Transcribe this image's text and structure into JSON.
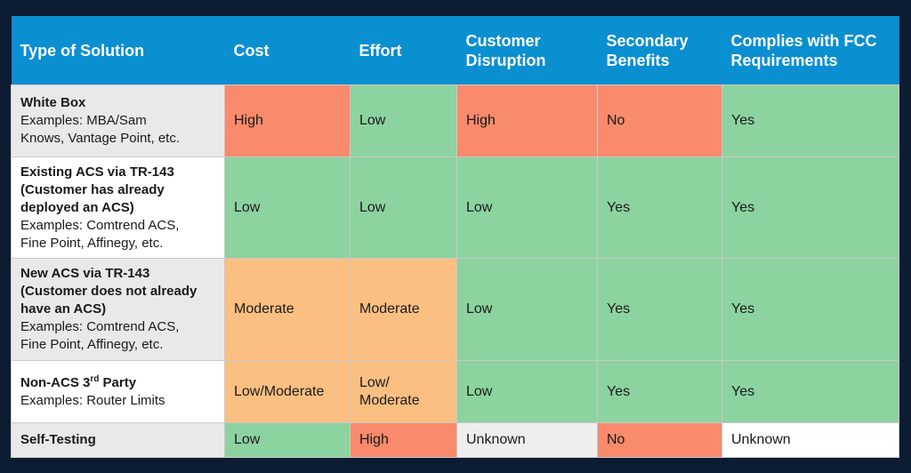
{
  "headers": [
    "Type of Solution",
    "Cost",
    "Effort",
    "Customer Disruption",
    "Secondary Benefits",
    "Complies with FCC Requirements"
  ],
  "header_lines": [
    [
      "Type of Solution"
    ],
    [
      "Cost"
    ],
    [
      "Effort"
    ],
    [
      "Customer",
      "Disruption"
    ],
    [
      "Secondary",
      "Benefits"
    ],
    [
      "Complies with FCC",
      "Requirements"
    ]
  ],
  "rows": [
    {
      "type": {
        "bold": [
          "White Box"
        ],
        "examples": [
          "Examples: MBA/Sam",
          "Knows, Vantage Point, etc."
        ]
      },
      "cells": [
        "High",
        "Low",
        "High",
        "No",
        "Yes"
      ]
    },
    {
      "type": {
        "bold": [
          "Existing ACS via TR-143",
          "(Customer has already",
          "deployed an ACS)"
        ],
        "examples": [
          "Examples: Comtrend ACS,",
          "Fine Point, Affinegy, etc."
        ]
      },
      "cells": [
        "Low",
        "Low",
        "Low",
        "Yes",
        "Yes"
      ]
    },
    {
      "type": {
        "bold": [
          "New ACS via TR-143",
          "(Customer does not already",
          "have an ACS)"
        ],
        "examples": [
          "Examples: Comtrend ACS,",
          "Fine Point, Affinegy, etc."
        ]
      },
      "cells": [
        "Moderate",
        "Moderate",
        "Low",
        "Yes",
        "Yes"
      ]
    },
    {
      "type": {
        "bold_main": "Non-ACS 3",
        "bold_sup": "rd",
        "bold_tail": " Party",
        "examples": [
          "Examples: Router Limits"
        ]
      },
      "cells": [
        "Low/Moderate",
        "Low/\nModerate",
        "Low",
        "Yes",
        "Yes"
      ]
    },
    {
      "type": {
        "bold": [
          "Self-Testing"
        ],
        "examples": []
      },
      "cells": [
        "Low",
        "High",
        "Unknown",
        "No",
        "Unknown"
      ]
    }
  ],
  "colors": {
    "header_bg": "#0a8fd1",
    "page_bg": "#0b1c33",
    "red": "#f98a6c",
    "green": "#8cd3a0",
    "orange": "#fbbf82"
  }
}
